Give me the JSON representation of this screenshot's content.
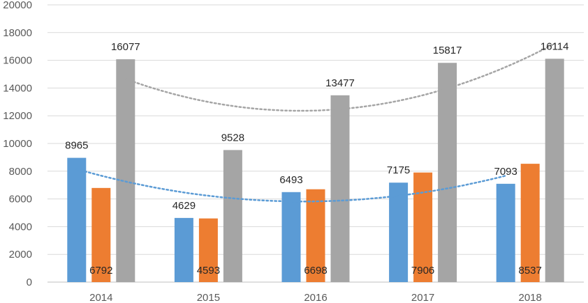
{
  "chart_data": {
    "type": "bar",
    "title": "",
    "xlabel": "",
    "ylabel": "",
    "ylim": [
      0,
      20000
    ],
    "ytick_step": 2000,
    "grid": true,
    "legend": "none",
    "categories": [
      "2014",
      "2015",
      "2016",
      "2017",
      "2018"
    ],
    "series": [
      {
        "values": [
          8965,
          4629,
          6493,
          7175,
          7093
        ],
        "color": "#5B9BD5",
        "label_position": "above",
        "trendline": "polynomial",
        "trendline_color": "#5B9BD5"
      },
      {
        "values": [
          6792,
          4593,
          6698,
          7906,
          8537
        ],
        "color": "#ED7D31",
        "label_position": "bottom-inside",
        "trendline": "none"
      },
      {
        "values": [
          16077,
          9528,
          13477,
          15817,
          16114
        ],
        "color": "#A5A5A5",
        "label_position": "above",
        "trendline": "polynomial",
        "trendline_color": "#A5A5A5"
      }
    ]
  }
}
